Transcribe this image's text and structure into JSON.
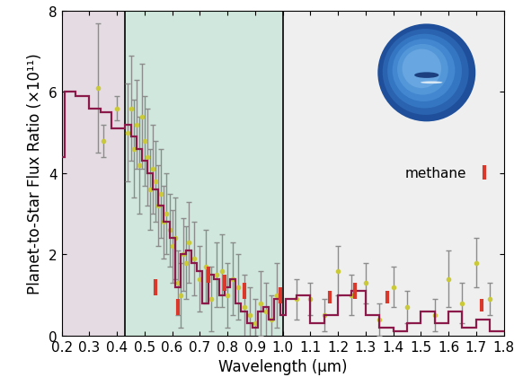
{
  "chart_data": {
    "type": "spectrum",
    "x_label": "Wavelength (μm)",
    "y_label": "Planet-to-Star Flux Ratio (×10¹¹)",
    "xlim": [
      0.2,
      1.8
    ],
    "xticks": [
      0.2,
      0.3,
      0.4,
      0.5,
      0.6,
      0.7,
      0.8,
      0.9,
      {
        "value": 1.0,
        "label": "1.0"
      },
      1.1,
      1.2,
      1.3,
      1.4,
      1.5,
      1.6,
      1.7,
      1.8
    ],
    "ylim": [
      0,
      8
    ],
    "yticks": [
      0,
      2,
      4,
      6,
      8
    ],
    "legend": "center right",
    "regions": [
      {
        "x0": 0.2,
        "x1": 0.43,
        "color": "#e4dce2"
      },
      {
        "x0": 0.43,
        "x1": 1.0,
        "color": "#cfe7dc"
      },
      {
        "x0": 1.0,
        "x1": 1.8,
        "color": "#efefef"
      }
    ],
    "series": [
      {
        "type": "step",
        "color": "#8b1a4a",
        "bins": [
          0.2,
          0.21,
          0.25,
          0.3,
          0.34,
          0.38,
          0.43,
          0.45,
          0.47,
          0.49,
          0.51,
          0.53,
          0.55,
          0.57,
          0.59,
          0.61,
          0.63,
          0.65,
          0.67,
          0.69,
          0.71,
          0.73,
          0.75,
          0.77,
          0.79,
          0.81,
          0.83,
          0.85,
          0.87,
          0.89,
          0.91,
          0.93,
          0.95,
          0.97,
          0.99,
          1.01,
          1.05,
          1.1,
          1.15,
          1.2,
          1.25,
          1.3,
          1.35,
          1.4,
          1.45,
          1.5,
          1.55,
          1.6,
          1.65,
          1.7,
          1.75,
          1.8
        ],
        "values": [
          4.4,
          6.0,
          5.9,
          5.6,
          5.5,
          5.1,
          5.2,
          4.9,
          4.6,
          4.3,
          4.0,
          3.6,
          3.2,
          2.8,
          2.4,
          1.2,
          2.0,
          2.1,
          1.8,
          1.6,
          0.8,
          1.5,
          1.4,
          1.0,
          1.2,
          1.4,
          0.8,
          0.6,
          0.3,
          0.2,
          0.6,
          0.7,
          0.4,
          0.9,
          0.5,
          0.9,
          1.0,
          0.3,
          0.5,
          1.0,
          1.1,
          0.5,
          0.2,
          0.1,
          0.3,
          0.6,
          0.3,
          0.6,
          0.2,
          0.4,
          0.1
        ]
      },
      {
        "type": "scatter",
        "color": "#c9c93a",
        "error_color": "#8c8c8c",
        "x": [
          0.33,
          0.35,
          0.4,
          0.44,
          0.45,
          0.46,
          0.47,
          0.48,
          0.49,
          0.5,
          0.51,
          0.52,
          0.53,
          0.54,
          0.55,
          0.56,
          0.57,
          0.58,
          0.59,
          0.6,
          0.61,
          0.62,
          0.63,
          0.64,
          0.65,
          0.66,
          0.68,
          0.7,
          0.72,
          0.74,
          0.76,
          0.78,
          0.8,
          0.82,
          0.84,
          0.86,
          0.88,
          0.9,
          0.92,
          0.94,
          0.96,
          0.98,
          1.05,
          1.1,
          1.15,
          1.2,
          1.25,
          1.3,
          1.35,
          1.4,
          1.45,
          1.55,
          1.6,
          1.65,
          1.7,
          1.75
        ],
        "values": [
          6.1,
          4.8,
          5.6,
          5.0,
          5.6,
          4.6,
          5.2,
          4.2,
          5.4,
          4.8,
          4.4,
          3.6,
          4.1,
          3.8,
          3.2,
          3.5,
          2.8,
          3.0,
          2.6,
          2.2,
          2.4,
          1.3,
          1.0,
          2.0,
          1.8,
          2.3,
          1.9,
          1.4,
          1.7,
          0.9,
          1.5,
          1.6,
          1.0,
          1.4,
          1.2,
          0.7,
          0.5,
          0.3,
          0.8,
          0.6,
          0.4,
          1.0,
          0.9,
          0.9,
          0.5,
          1.6,
          1.0,
          1.3,
          0.4,
          1.2,
          0.7,
          0.5,
          1.4,
          0.8,
          1.8,
          0.9
        ],
        "errors": [
          1.6,
          0.4,
          0.3,
          1.2,
          1.3,
          1.2,
          1.1,
          1.2,
          1.3,
          1.1,
          1.2,
          1.0,
          1.1,
          1.0,
          1.0,
          1.1,
          0.9,
          1.0,
          0.9,
          0.9,
          1.0,
          0.8,
          0.8,
          0.9,
          0.9,
          1.0,
          0.9,
          0.8,
          0.9,
          0.8,
          0.8,
          0.9,
          0.8,
          0.9,
          0.8,
          0.8,
          0.7,
          0.6,
          0.8,
          0.7,
          0.6,
          0.8,
          0.5,
          0.4,
          0.4,
          0.6,
          0.5,
          0.5,
          0.4,
          0.5,
          0.4,
          0.4,
          0.7,
          0.5,
          0.6,
          0.4
        ]
      },
      {
        "name": "methane",
        "type": "band",
        "color": "#d9382b",
        "x": [
          0.54,
          0.62,
          0.73,
          0.79,
          0.86,
          0.99,
          1.17,
          1.26,
          1.38,
          1.72
        ],
        "low": [
          1.0,
          0.5,
          1.3,
          1.1,
          0.9,
          0.8,
          0.8,
          0.9,
          0.8,
          0.6
        ],
        "high": [
          1.4,
          0.9,
          1.7,
          1.5,
          1.3,
          1.2,
          1.1,
          1.3,
          1.1,
          0.9
        ]
      }
    ]
  }
}
